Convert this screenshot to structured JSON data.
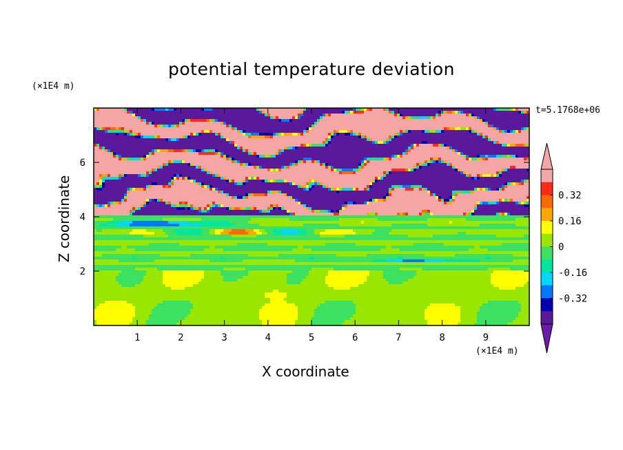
{
  "chart_data": {
    "type": "heatmap",
    "title": "potential temperature deviation",
    "xlabel": "X coordinate",
    "ylabel": "Z coordinate",
    "x_unit": "(×1E4 m)",
    "y_unit": "(×1E4 m)",
    "timestamp": "t=5.1768e+06",
    "xlim": [
      0,
      10
    ],
    "ylim": [
      0,
      8
    ],
    "x_ticks": [
      "1",
      "2",
      "3",
      "4",
      "5",
      "6",
      "7",
      "8",
      "9"
    ],
    "y_ticks": [
      "2",
      "4",
      "6"
    ],
    "colorbar": {
      "levels": [
        -0.48,
        -0.4,
        -0.32,
        -0.24,
        -0.16,
        -0.08,
        0,
        0.08,
        0.16,
        0.24,
        0.32,
        0.4,
        0.48
      ],
      "tick_labels": [
        "0.32",
        "0.16",
        "0",
        "-0.16",
        "-0.32"
      ],
      "tick_values": [
        0.32,
        0.16,
        0,
        -0.16,
        -0.32
      ],
      "colors_top_to_bottom": [
        "#f4a6a6",
        "#ff2a1a",
        "#ff6a00",
        "#ffa500",
        "#ffff00",
        "#99e600",
        "#3de060",
        "#00e6a0",
        "#00d8ff",
        "#0078ff",
        "#0000b0",
        "#5a189a"
      ],
      "extend_max_color": "#f4a6a6",
      "extend_min_color": "#6a1ca8"
    },
    "regions": [
      {
        "z_range": [
          6.8,
          8.0
        ],
        "dominant": "alternating +0.48 / -0.48 bands"
      },
      {
        "z_range": [
          4.0,
          6.8
        ],
        "dominant": "alternating +0.48 / -0.48 bands with small-scale mixing"
      },
      {
        "z_range": [
          2.0,
          4.0
        ],
        "dominant": "thin horizontal layers near 0"
      },
      {
        "z_range": [
          0.0,
          2.0
        ],
        "dominant": "weak +0.08 eddies on near-zero background"
      }
    ]
  }
}
